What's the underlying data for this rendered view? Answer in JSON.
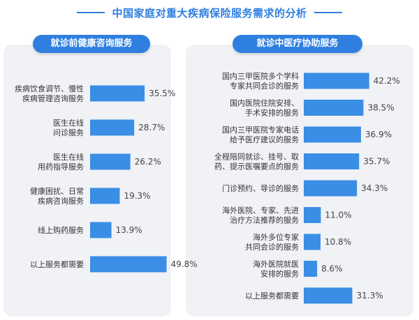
{
  "title": "中国家庭对重大疾病保险服务需求的分析",
  "colors": {
    "accent": "#2f7fe0",
    "bar": "#3a8ee6",
    "panel": "#f0f2f6"
  },
  "chart_data": [
    {
      "type": "bar",
      "orientation": "horizontal",
      "title": "就诊前健康咨询服务",
      "unit": "%",
      "categories": [
        [
          "疾病饮食调节、慢性",
          "疾病管理咨询服务"
        ],
        [
          "医生在线",
          "问诊服务"
        ],
        [
          "医生在线",
          "用药指导服务"
        ],
        [
          "健康困扰、日常",
          "疾病咨询服务"
        ],
        [
          "线上购药服务"
        ],
        [
          "以上服务都需要"
        ]
      ],
      "values": [
        35.5,
        28.7,
        26.2,
        19.3,
        13.9,
        49.8
      ],
      "labels": [
        "35.5%",
        "28.7%",
        "26.2%",
        "19.3%",
        "13.9%",
        "49.8%"
      ]
    },
    {
      "type": "bar",
      "orientation": "horizontal",
      "title": "就诊中医疗协助服务",
      "unit": "%",
      "categories": [
        [
          "国内三甲医院多个学科",
          "专家共同会诊的服务"
        ],
        [
          "国内医院住院安排、",
          "手术安排的服务"
        ],
        [
          "国内三甲医院专家电话",
          "给予医疗建议的服务"
        ],
        [
          "全程陪同就诊、挂号、取",
          "药、提示医嘱要点的服务"
        ],
        [
          "门诊预约、导诊的服务"
        ],
        [
          "海外医院、专家、先进",
          "治疗方法推荐的服务"
        ],
        [
          "海外多位专家",
          "共同会诊的服务"
        ],
        [
          "海外医院就医",
          "安排的服务"
        ],
        [
          "以上服务都需要"
        ]
      ],
      "values": [
        42.2,
        38.5,
        36.9,
        35.7,
        34.3,
        11.0,
        10.8,
        8.6,
        31.3
      ],
      "labels": [
        "42.2%",
        "38.5%",
        "36.9%",
        "35.7%",
        "34.3%",
        "11.0%",
        "10.8%",
        "8.6%",
        "31.3%"
      ]
    }
  ]
}
